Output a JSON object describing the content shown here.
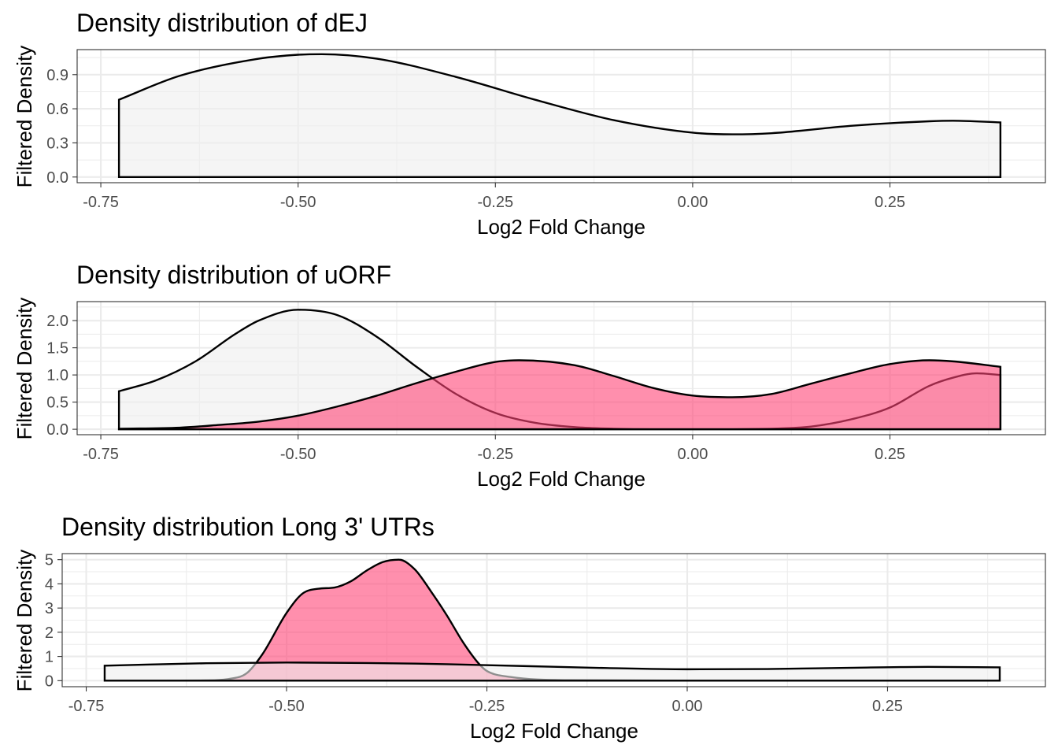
{
  "chart_data": [
    {
      "type": "area",
      "title": "Density distribution of dEJ",
      "xlabel": "Log2 Fold Change",
      "ylabel": "Filtered Density",
      "xlim": [
        -0.78,
        0.447
      ],
      "ylim": [
        -0.05,
        1.12
      ],
      "x_ticks": [
        -0.75,
        -0.5,
        -0.25,
        0.0,
        0.25
      ],
      "x_tick_labels": [
        "-0.75",
        "-0.50",
        "-0.25",
        "0.00",
        "0.25"
      ],
      "y_ticks": [
        0.0,
        0.3,
        0.6,
        0.9
      ],
      "y_tick_labels": [
        "0.0",
        "0.3",
        "0.6",
        "0.9"
      ],
      "grid": true,
      "legend": "none",
      "series": [
        {
          "fill": "#eeeeee",
          "x": [
            -0.727,
            -0.65,
            -0.55,
            -0.5,
            -0.47,
            -0.4,
            -0.3,
            -0.2,
            -0.1,
            0.0,
            0.05,
            0.1,
            0.2,
            0.3,
            0.33,
            0.39
          ],
          "y": [
            0.68,
            0.89,
            1.04,
            1.075,
            1.08,
            1.04,
            0.88,
            0.68,
            0.5,
            0.39,
            0.375,
            0.385,
            0.45,
            0.49,
            0.495,
            0.48
          ]
        }
      ]
    },
    {
      "type": "area",
      "title": "Density distribution of uORF",
      "xlabel": "Log2 Fold Change",
      "ylabel": "Filtered Density",
      "xlim": [
        -0.78,
        0.447
      ],
      "ylim": [
        -0.1,
        2.35
      ],
      "x_ticks": [
        -0.75,
        -0.5,
        -0.25,
        0.0,
        0.25
      ],
      "x_tick_labels": [
        "-0.75",
        "-0.50",
        "-0.25",
        "0.00",
        "0.25"
      ],
      "y_ticks": [
        0.0,
        0.5,
        1.0,
        1.5,
        2.0
      ],
      "y_tick_labels": [
        "0.0",
        "0.5",
        "1.0",
        "1.5",
        "2.0"
      ],
      "grid": true,
      "legend": "none",
      "series": [
        {
          "fill": "#eeeeee",
          "x": [
            -0.727,
            -0.68,
            -0.63,
            -0.58,
            -0.55,
            -0.5,
            -0.45,
            -0.4,
            -0.35,
            -0.3,
            -0.25,
            -0.2,
            -0.15,
            -0.1,
            -0.05,
            0.0,
            0.1,
            0.15,
            0.2,
            0.25,
            0.3,
            0.33,
            0.36,
            0.39
          ],
          "y": [
            0.7,
            0.9,
            1.25,
            1.75,
            2.0,
            2.2,
            2.1,
            1.7,
            1.15,
            0.65,
            0.3,
            0.12,
            0.04,
            0.01,
            0.0,
            0.0,
            0.01,
            0.05,
            0.18,
            0.4,
            0.8,
            0.95,
            1.03,
            1.0
          ]
        },
        {
          "fill": "#ff4477",
          "x": [
            -0.727,
            -0.65,
            -0.6,
            -0.55,
            -0.5,
            -0.45,
            -0.4,
            -0.35,
            -0.3,
            -0.25,
            -0.22,
            -0.15,
            -0.1,
            -0.05,
            0.0,
            0.05,
            0.1,
            0.15,
            0.2,
            0.25,
            0.3,
            0.33,
            0.39
          ],
          "y": [
            0.01,
            0.03,
            0.08,
            0.14,
            0.25,
            0.42,
            0.62,
            0.85,
            1.06,
            1.24,
            1.27,
            1.18,
            0.98,
            0.76,
            0.62,
            0.59,
            0.65,
            0.84,
            1.03,
            1.2,
            1.27,
            1.25,
            1.15
          ]
        }
      ]
    },
    {
      "type": "area",
      "title": "Density distribution Long 3' UTRs",
      "xlabel": "Log2 Fold Change",
      "ylabel": "Filtered Density",
      "xlim": [
        -0.78,
        0.447
      ],
      "ylim": [
        -0.25,
        5.25
      ],
      "x_ticks": [
        -0.75,
        -0.5,
        -0.25,
        0.0,
        0.25
      ],
      "x_tick_labels": [
        "-0.75",
        "-0.50",
        "-0.25",
        "0.00",
        "0.25"
      ],
      "y_ticks": [
        0,
        1,
        2,
        3,
        4,
        5
      ],
      "y_tick_labels": [
        "0",
        "1",
        "2",
        "3",
        "4",
        "5"
      ],
      "grid": true,
      "legend": "none",
      "series": [
        {
          "fill": "#ff4477",
          "x": [
            -0.727,
            -0.6,
            -0.57,
            -0.55,
            -0.53,
            -0.5,
            -0.48,
            -0.46,
            -0.44,
            -0.42,
            -0.4,
            -0.38,
            -0.36,
            -0.34,
            -0.32,
            -0.3,
            -0.28,
            -0.26,
            -0.25,
            -0.22,
            -0.15,
            0.0,
            0.2,
            0.39
          ],
          "y": [
            0.0,
            0.01,
            0.08,
            0.3,
            1.1,
            2.8,
            3.6,
            3.8,
            3.85,
            4.1,
            4.55,
            4.9,
            5.0,
            4.6,
            3.7,
            2.7,
            1.6,
            0.7,
            0.4,
            0.15,
            0.02,
            0.0,
            0.0,
            0.0
          ]
        },
        {
          "fill": "#eeeeee",
          "x": [
            -0.727,
            -0.6,
            -0.5,
            -0.4,
            -0.3,
            -0.2,
            -0.1,
            0.0,
            0.1,
            0.2,
            0.3,
            0.39
          ],
          "y": [
            0.62,
            0.72,
            0.75,
            0.73,
            0.68,
            0.6,
            0.52,
            0.47,
            0.48,
            0.53,
            0.57,
            0.55
          ]
        }
      ]
    }
  ]
}
